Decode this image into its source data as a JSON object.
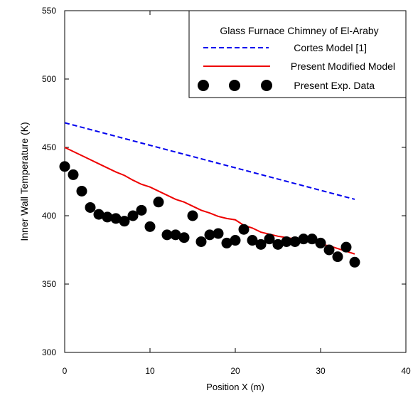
{
  "chart_data": {
    "type": "line",
    "xlabel": "Position X (m)",
    "ylabel": "Inner Wall Temperature (K)",
    "xlim": [
      0,
      40
    ],
    "ylim": [
      300,
      550
    ],
    "xticks": [
      0,
      10,
      20,
      30,
      40
    ],
    "yticks": [
      300,
      350,
      400,
      450,
      500,
      550
    ],
    "xtick_labels": [
      "0",
      "10",
      "20",
      "30",
      "40"
    ],
    "ytick_labels": [
      "300",
      "350",
      "400",
      "450",
      "500",
      "550"
    ],
    "grid": false,
    "legend_title": "Glass Furnace Chimney of El-Araby",
    "legend_position": "top-right",
    "series": [
      {
        "name": "Cortes Model [1]",
        "kind": "line",
        "style": "dashed",
        "color": "#0000ee",
        "x": [
          0,
          34
        ],
        "y": [
          468,
          412
        ]
      },
      {
        "name": "Present Modified Model",
        "kind": "line",
        "style": "solid",
        "color": "#ee0000",
        "x": [
          0,
          1,
          2,
          3,
          4,
          5,
          6,
          7,
          8,
          9,
          10,
          11,
          12,
          13,
          14,
          15,
          16,
          17,
          18,
          19,
          20,
          21,
          22,
          23,
          24,
          25,
          26,
          27,
          28,
          29,
          30,
          31,
          32,
          33,
          34
        ],
        "y": [
          450,
          447,
          444,
          441,
          438,
          435,
          432,
          429.5,
          426,
          423,
          421,
          418,
          415,
          412,
          410,
          407,
          404,
          402,
          399.5,
          398,
          397,
          393,
          391,
          388,
          386.5,
          385,
          384,
          383,
          382,
          381,
          379,
          378,
          376,
          374,
          372
        ]
      },
      {
        "name": "Present Exp. Data",
        "kind": "scatter",
        "marker": "circle",
        "color": "#000000",
        "x": [
          0,
          1,
          2,
          3,
          4,
          5,
          6,
          7,
          8,
          9,
          10,
          11,
          12,
          13,
          14,
          15,
          16,
          17,
          18,
          19,
          20,
          21,
          22,
          23,
          24,
          25,
          26,
          27,
          28,
          29,
          30,
          31,
          32,
          33,
          34
        ],
        "y": [
          436,
          430,
          418,
          406,
          401,
          399,
          398,
          396,
          400,
          404,
          392,
          410,
          386,
          386,
          384,
          400,
          381,
          386,
          387,
          380,
          382,
          390,
          382,
          379,
          383,
          379,
          381,
          381,
          383,
          383,
          380,
          375,
          370,
          377,
          366
        ]
      }
    ]
  }
}
